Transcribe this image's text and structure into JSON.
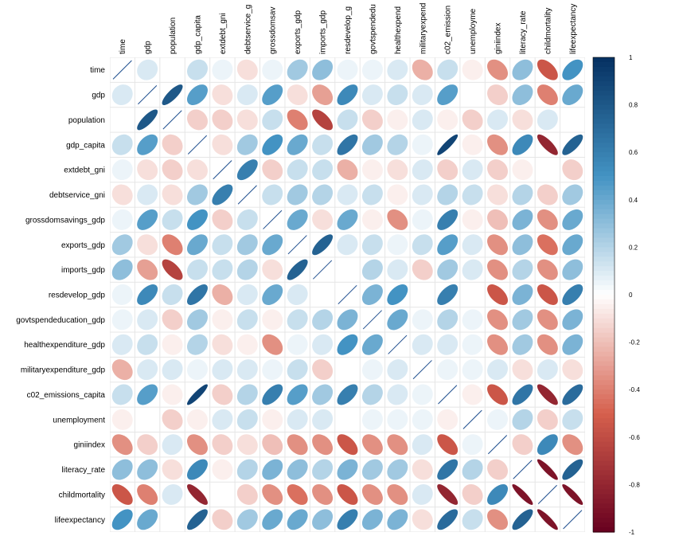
{
  "chart_data": {
    "type": "heatmap",
    "style": "ellipse-correlation-matrix",
    "variables": [
      "time",
      "gdp",
      "population",
      "gdp_capita",
      "extdebt_gni",
      "debtservice_gni",
      "grossdomsavings_gdp",
      "exports_gdp",
      "imports_gdp",
      "resdevelop_gdp",
      "govtspendeducation_gdp",
      "healthexpenditure_gdp",
      "militaryexpenditure_gdp",
      "c02_emissions_capita",
      "unemployment",
      "giniindex",
      "literacy_rate",
      "childmortality",
      "lifeexpectancy"
    ],
    "column_labels": [
      "time",
      "gdp",
      "population",
      "gdp_capita",
      "extdebt_gni",
      "debtservice_g",
      "grossdomsav",
      "exports_gdp",
      "imports_gdp",
      "resdevelop_g",
      "govtspendedu",
      "healthexpend",
      "militaryexpend",
      "c02_emission",
      "unemployme",
      "giniindex",
      "literacy_rate",
      "childmortality",
      "lifeexpectancy"
    ],
    "diagonal_values_available": false,
    "matrix": [
      [
        1.0,
        0.1,
        0.0,
        0.15,
        0.05,
        -0.1,
        0.05,
        0.25,
        0.3,
        0.05,
        0.05,
        0.1,
        -0.25,
        0.15,
        -0.05,
        -0.35,
        0.3,
        -0.55,
        0.5
      ],
      [
        0.1,
        1.0,
        0.8,
        0.45,
        -0.1,
        0.1,
        0.45,
        -0.1,
        -0.3,
        0.55,
        0.1,
        0.15,
        0.1,
        0.45,
        0.0,
        -0.15,
        0.3,
        -0.4,
        0.4
      ],
      [
        0.0,
        0.8,
        1.0,
        -0.15,
        -0.15,
        -0.1,
        0.15,
        -0.4,
        -0.65,
        0.15,
        -0.15,
        -0.05,
        0.1,
        -0.05,
        -0.15,
        0.1,
        -0.1,
        0.1,
        0.0
      ],
      [
        0.15,
        0.45,
        -0.15,
        1.0,
        -0.1,
        0.25,
        0.5,
        0.4,
        0.15,
        0.65,
        0.25,
        0.2,
        0.05,
        0.9,
        -0.05,
        -0.35,
        0.55,
        -0.8,
        0.75
      ],
      [
        0.05,
        -0.1,
        -0.15,
        -0.1,
        1.0,
        0.6,
        -0.15,
        0.15,
        0.15,
        -0.25,
        -0.05,
        -0.1,
        0.1,
        -0.15,
        0.1,
        -0.15,
        -0.05,
        0.0,
        -0.15
      ],
      [
        -0.1,
        0.1,
        -0.1,
        0.25,
        0.6,
        1.0,
        0.15,
        0.25,
        0.2,
        0.1,
        0.15,
        -0.05,
        0.1,
        0.2,
        0.15,
        -0.1,
        0.2,
        -0.15,
        0.25
      ],
      [
        0.05,
        0.45,
        0.15,
        0.5,
        -0.15,
        0.15,
        1.0,
        0.4,
        -0.1,
        0.4,
        -0.05,
        -0.35,
        0.05,
        0.6,
        -0.05,
        -0.2,
        0.35,
        -0.35,
        0.4
      ],
      [
        0.25,
        -0.1,
        -0.4,
        0.4,
        0.15,
        0.25,
        0.4,
        1.0,
        0.75,
        0.1,
        0.15,
        0.05,
        0.15,
        0.45,
        0.1,
        -0.35,
        0.3,
        -0.45,
        0.4
      ],
      [
        0.3,
        -0.3,
        -0.65,
        0.15,
        0.15,
        0.2,
        -0.1,
        0.75,
        1.0,
        0.0,
        0.2,
        0.1,
        -0.15,
        0.25,
        0.1,
        -0.35,
        0.2,
        -0.35,
        0.3
      ],
      [
        0.05,
        0.55,
        0.15,
        0.65,
        -0.25,
        0.1,
        0.4,
        0.1,
        0.0,
        1.0,
        0.35,
        0.5,
        0.0,
        0.6,
        0.0,
        -0.55,
        0.35,
        -0.55,
        0.6
      ],
      [
        0.05,
        0.1,
        -0.15,
        0.25,
        -0.05,
        0.15,
        -0.05,
        0.15,
        0.2,
        0.35,
        1.0,
        0.4,
        0.05,
        0.2,
        0.05,
        -0.35,
        0.25,
        -0.35,
        0.35
      ],
      [
        0.1,
        0.15,
        -0.05,
        0.2,
        -0.1,
        -0.05,
        -0.35,
        0.05,
        0.1,
        0.5,
        0.4,
        1.0,
        0.1,
        0.1,
        0.05,
        -0.35,
        0.25,
        -0.35,
        0.35
      ],
      [
        -0.25,
        0.1,
        0.1,
        0.05,
        0.1,
        0.1,
        0.05,
        0.15,
        -0.15,
        0.0,
        0.05,
        0.1,
        1.0,
        0.05,
        0.05,
        0.1,
        -0.1,
        0.1,
        -0.1
      ],
      [
        0.15,
        0.45,
        -0.05,
        0.9,
        -0.15,
        0.2,
        0.6,
        0.45,
        0.25,
        0.6,
        0.2,
        0.1,
        0.05,
        1.0,
        -0.05,
        -0.55,
        0.65,
        -0.8,
        0.7
      ],
      [
        -0.05,
        0.0,
        -0.15,
        -0.05,
        0.1,
        0.15,
        -0.05,
        0.1,
        0.1,
        0.0,
        0.05,
        0.05,
        0.05,
        -0.05,
        1.0,
        0.05,
        0.2,
        -0.15,
        0.15
      ],
      [
        -0.35,
        -0.15,
        0.1,
        -0.35,
        -0.15,
        -0.1,
        -0.2,
        -0.35,
        -0.35,
        -0.55,
        -0.35,
        -0.35,
        0.1,
        -0.55,
        0.05,
        1.0,
        -0.15,
        0.55,
        -0.35
      ],
      [
        0.3,
        0.3,
        -0.1,
        0.55,
        -0.05,
        0.2,
        0.35,
        0.3,
        0.2,
        0.35,
        0.25,
        0.25,
        -0.1,
        0.65,
        0.2,
        -0.15,
        1.0,
        -0.9,
        0.75
      ],
      [
        -0.55,
        -0.4,
        0.1,
        -0.8,
        0.0,
        -0.15,
        -0.35,
        -0.45,
        -0.35,
        -0.55,
        -0.35,
        -0.35,
        0.1,
        -0.8,
        -0.15,
        0.55,
        -0.9,
        1.0,
        -0.9
      ],
      [
        0.5,
        0.4,
        0.0,
        0.75,
        -0.15,
        0.25,
        0.4,
        0.4,
        0.3,
        0.6,
        0.35,
        0.35,
        -0.1,
        0.7,
        0.15,
        -0.35,
        0.75,
        -0.9,
        1.0
      ]
    ],
    "colorbar": {
      "ticks": [
        "1",
        "0.8",
        "0.6",
        "0.4",
        "0.2",
        "0",
        "-0.2",
        "-0.4",
        "-0.6",
        "-0.8",
        "-1"
      ],
      "range": [
        -1,
        1
      ]
    },
    "colors": {
      "neg_strong": "#67001F",
      "neg_mid": "#D6604D",
      "neutral": "#FFFFFF",
      "pos_mid": "#4393C3",
      "pos_strong": "#053061",
      "cell_background": "#E6E6E6"
    },
    "grid": true,
    "legend": "right"
  }
}
